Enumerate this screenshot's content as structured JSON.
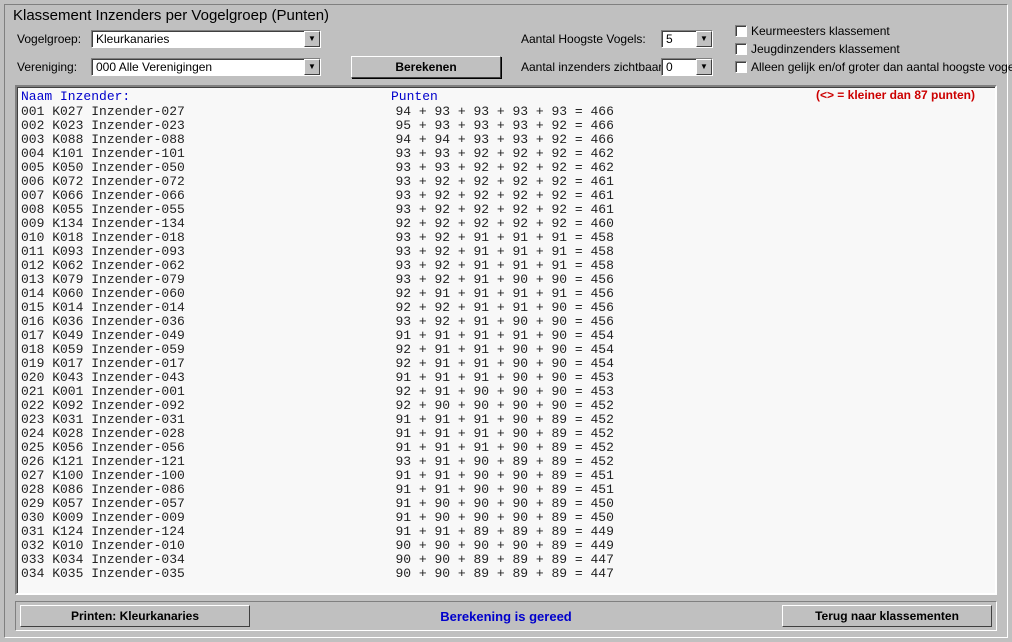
{
  "panel_title": "Klassement Inzenders per Vogelgroep (Punten)",
  "labels": {
    "vogelgroep": "Vogelgroep:",
    "vereniging": "Vereniging:",
    "aantal_hoogste": "Aantal Hoogste Vogels:",
    "aantal_zichtbaar": "Aantal inzenders zichtbaar:"
  },
  "combos": {
    "vogelgroep": "Kleurkanaries",
    "vereniging": "000  Alle Verenigingen",
    "aantal_hoogste": "5",
    "aantal_zichtbaar": "0"
  },
  "buttons": {
    "berekenen": "Berekenen",
    "printen": "Printen: Kleurkanaries",
    "terug": "Terug naar klassementen"
  },
  "checkboxes": {
    "keurmeesters": "Keurmeesters klassement",
    "jeugd": "Jeugdinzenders klassement",
    "alleen_gelijk": "Alleen gelijk en/of groter dan aantal hoogste vogels"
  },
  "list": {
    "hdr_naam": "Naam Inzender:",
    "hdr_punten": "Punten",
    "note": "(<> = kleiner dan 87 punten)",
    "rows": [
      {
        "n": "001",
        "c": "K027",
        "name": "Inzender-027",
        "s": "94 + 93 + 93 + 93 + 93 = 466"
      },
      {
        "n": "002",
        "c": "K023",
        "name": "Inzender-023",
        "s": "95 + 93 + 93 + 93 + 92 = 466"
      },
      {
        "n": "003",
        "c": "K088",
        "name": "Inzender-088",
        "s": "94 + 94 + 93 + 93 + 92 = 466"
      },
      {
        "n": "004",
        "c": "K101",
        "name": "Inzender-101",
        "s": "93 + 93 + 92 + 92 + 92 = 462"
      },
      {
        "n": "005",
        "c": "K050",
        "name": "Inzender-050",
        "s": "93 + 93 + 92 + 92 + 92 = 462"
      },
      {
        "n": "006",
        "c": "K072",
        "name": "Inzender-072",
        "s": "93 + 92 + 92 + 92 + 92 = 461"
      },
      {
        "n": "007",
        "c": "K066",
        "name": "Inzender-066",
        "s": "93 + 92 + 92 + 92 + 92 = 461"
      },
      {
        "n": "008",
        "c": "K055",
        "name": "Inzender-055",
        "s": "93 + 92 + 92 + 92 + 92 = 461"
      },
      {
        "n": "009",
        "c": "K134",
        "name": "Inzender-134",
        "s": "92 + 92 + 92 + 92 + 92 = 460"
      },
      {
        "n": "010",
        "c": "K018",
        "name": "Inzender-018",
        "s": "93 + 92 + 91 + 91 + 91 = 458"
      },
      {
        "n": "011",
        "c": "K093",
        "name": "Inzender-093",
        "s": "93 + 92 + 91 + 91 + 91 = 458"
      },
      {
        "n": "012",
        "c": "K062",
        "name": "Inzender-062",
        "s": "93 + 92 + 91 + 91 + 91 = 458"
      },
      {
        "n": "013",
        "c": "K079",
        "name": "Inzender-079",
        "s": "93 + 92 + 91 + 90 + 90 = 456"
      },
      {
        "n": "014",
        "c": "K060",
        "name": "Inzender-060",
        "s": "92 + 91 + 91 + 91 + 91 = 456"
      },
      {
        "n": "015",
        "c": "K014",
        "name": "Inzender-014",
        "s": "92 + 92 + 91 + 91 + 90 = 456"
      },
      {
        "n": "016",
        "c": "K036",
        "name": "Inzender-036",
        "s": "93 + 92 + 91 + 90 + 90 = 456"
      },
      {
        "n": "017",
        "c": "K049",
        "name": "Inzender-049",
        "s": "91 + 91 + 91 + 91 + 90 = 454"
      },
      {
        "n": "018",
        "c": "K059",
        "name": "Inzender-059",
        "s": "92 + 91 + 91 + 90 + 90 = 454"
      },
      {
        "n": "019",
        "c": "K017",
        "name": "Inzender-017",
        "s": "92 + 91 + 91 + 90 + 90 = 454"
      },
      {
        "n": "020",
        "c": "K043",
        "name": "Inzender-043",
        "s": "91 + 91 + 91 + 90 + 90 = 453"
      },
      {
        "n": "021",
        "c": "K001",
        "name": "Inzender-001",
        "s": "92 + 91 + 90 + 90 + 90 = 453"
      },
      {
        "n": "022",
        "c": "K092",
        "name": "Inzender-092",
        "s": "92 + 90 + 90 + 90 + 90 = 452"
      },
      {
        "n": "023",
        "c": "K031",
        "name": "Inzender-031",
        "s": "91 + 91 + 91 + 90 + 89 = 452"
      },
      {
        "n": "024",
        "c": "K028",
        "name": "Inzender-028",
        "s": "91 + 91 + 91 + 90 + 89 = 452"
      },
      {
        "n": "025",
        "c": "K056",
        "name": "Inzender-056",
        "s": "91 + 91 + 91 + 90 + 89 = 452"
      },
      {
        "n": "026",
        "c": "K121",
        "name": "Inzender-121",
        "s": "93 + 91 + 90 + 89 + 89 = 452"
      },
      {
        "n": "027",
        "c": "K100",
        "name": "Inzender-100",
        "s": "91 + 91 + 90 + 90 + 89 = 451"
      },
      {
        "n": "028",
        "c": "K086",
        "name": "Inzender-086",
        "s": "91 + 91 + 90 + 90 + 89 = 451"
      },
      {
        "n": "029",
        "c": "K057",
        "name": "Inzender-057",
        "s": "91 + 90 + 90 + 90 + 89 = 450"
      },
      {
        "n": "030",
        "c": "K009",
        "name": "Inzender-009",
        "s": "91 + 90 + 90 + 90 + 89 = 450"
      },
      {
        "n": "031",
        "c": "K124",
        "name": "Inzender-124",
        "s": "91 + 91 + 89 + 89 + 89 = 449"
      },
      {
        "n": "032",
        "c": "K010",
        "name": "Inzender-010",
        "s": "90 + 90 + 90 + 90 + 89 = 449"
      },
      {
        "n": "033",
        "c": "K034",
        "name": "Inzender-034",
        "s": "90 + 90 + 89 + 89 + 89 = 447"
      },
      {
        "n": "034",
        "c": "K035",
        "name": "Inzender-035",
        "s": "90 + 90 + 89 + 89 + 89 = 447"
      }
    ]
  },
  "status": "Berekening is gereed",
  "style": {
    "bg": "#c0c0c0",
    "list_bg": "#f8f8f8",
    "link_color": "#0000cc",
    "warn_color": "#cc0000",
    "mono_font": "Courier New"
  }
}
